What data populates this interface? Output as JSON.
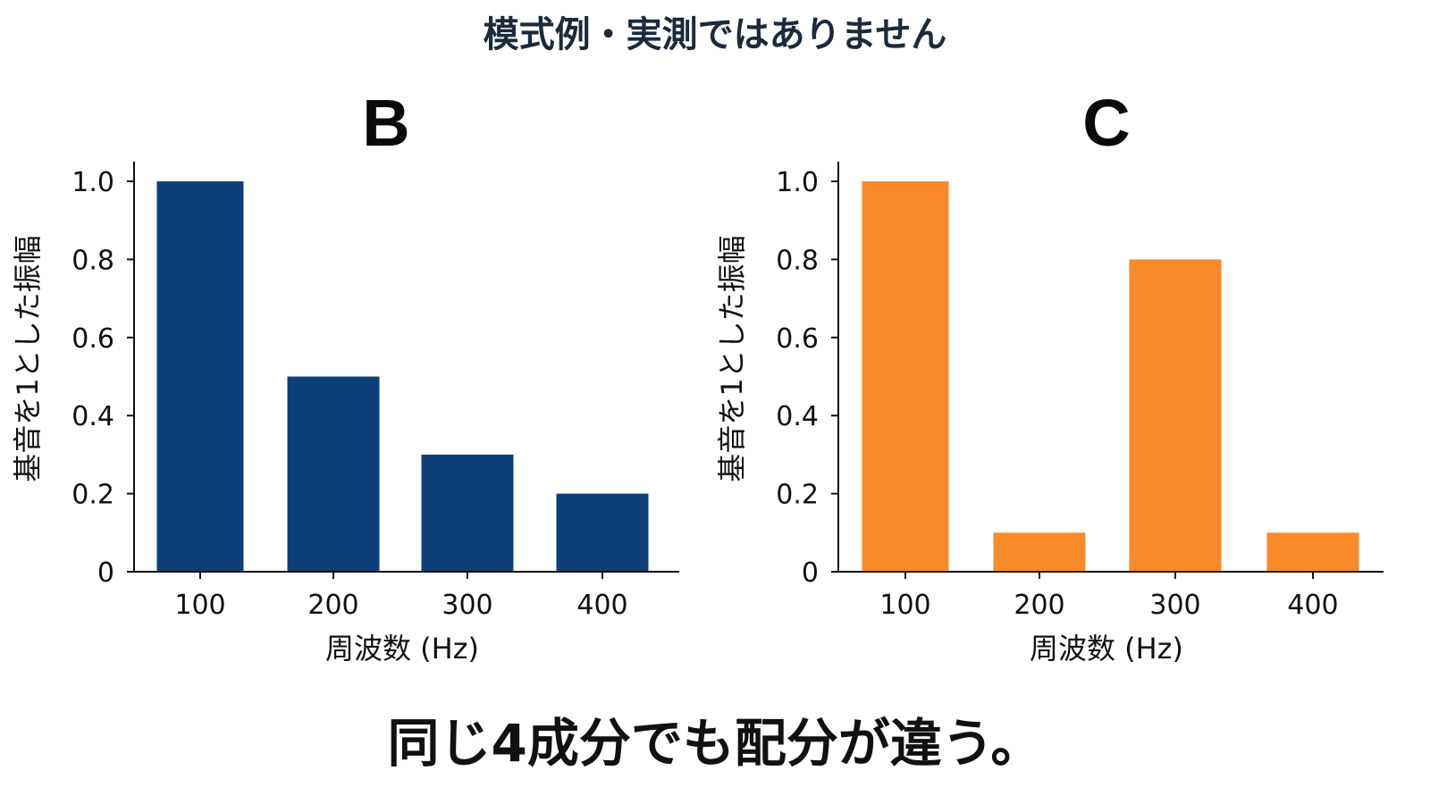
{
  "header": {
    "notice": "模式例・実測ではありません"
  },
  "caption": "同じ4成分でも配分が違う。",
  "colors": {
    "B": "#0d4079",
    "C": "#f98a2a",
    "axis": "#111111"
  },
  "chart_data": [
    {
      "type": "bar",
      "title": "B",
      "xlabel": "周波数 (Hz)",
      "ylabel": "基音を1とした振幅",
      "categories": [
        "100",
        "200",
        "300",
        "400"
      ],
      "values": [
        1.0,
        0.5,
        0.3,
        0.2
      ],
      "ylim": [
        0,
        1.0
      ],
      "yticks": [
        0,
        0.2,
        0.4,
        0.6,
        0.8,
        1.0
      ],
      "ytick_labels": [
        "0",
        "0.2",
        "0.4",
        "0.6",
        "0.8",
        "1.0"
      ],
      "color": "#0d4079",
      "grid": false,
      "legend": "none"
    },
    {
      "type": "bar",
      "title": "C",
      "xlabel": "周波数 (Hz)",
      "ylabel": "基音を1とした振幅",
      "categories": [
        "100",
        "200",
        "300",
        "400"
      ],
      "values": [
        1.0,
        0.1,
        0.8,
        0.1
      ],
      "ylim": [
        0,
        1.0
      ],
      "yticks": [
        0,
        0.2,
        0.4,
        0.6,
        0.8,
        1.0
      ],
      "ytick_labels": [
        "0",
        "0.2",
        "0.4",
        "0.6",
        "0.8",
        "1.0"
      ],
      "color": "#f98a2a",
      "grid": false,
      "legend": "none"
    }
  ]
}
